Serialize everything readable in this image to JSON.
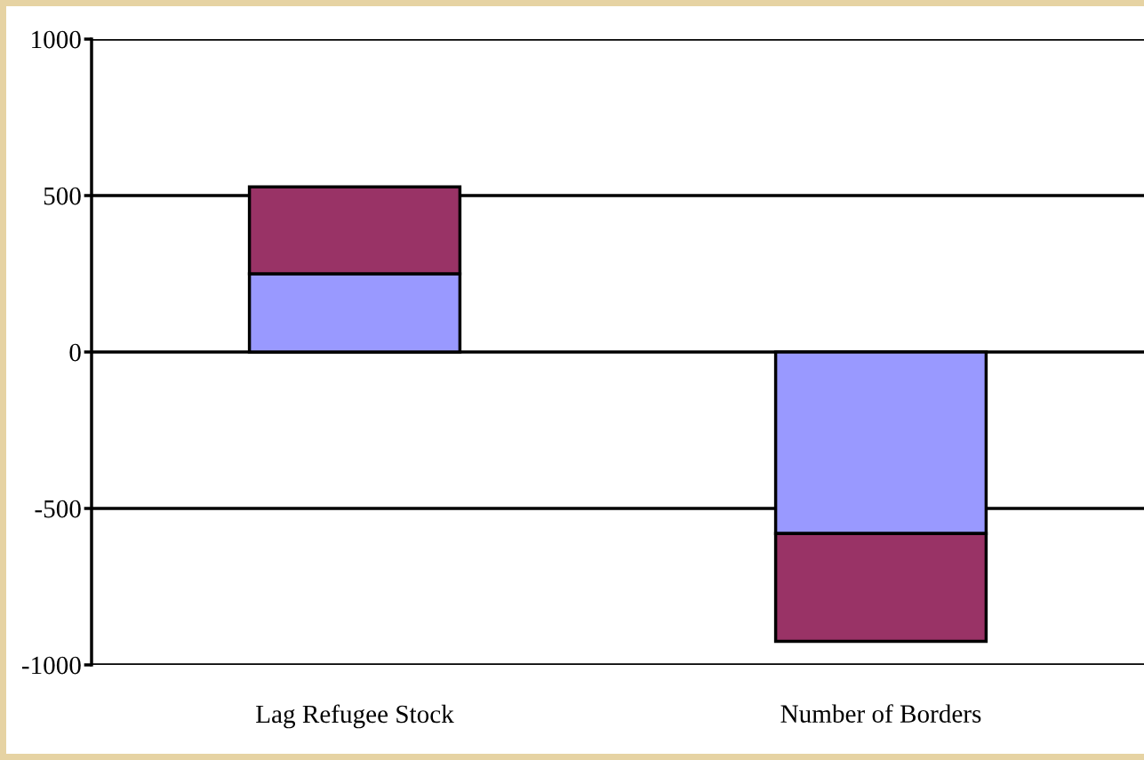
{
  "chart_data": {
    "type": "bar",
    "stacked": true,
    "categories": [
      "Lag Refugee Stock",
      "Number of Borders"
    ],
    "series": [
      {
        "color": "#9999ff",
        "values": [
          250,
          -580
        ]
      },
      {
        "color": "#993366",
        "values": [
          278,
          -345
        ]
      }
    ],
    "ylim": [
      -1000,
      1000
    ],
    "yticks": [
      -1000,
      -500,
      0,
      500,
      1000
    ],
    "grid": "y"
  }
}
